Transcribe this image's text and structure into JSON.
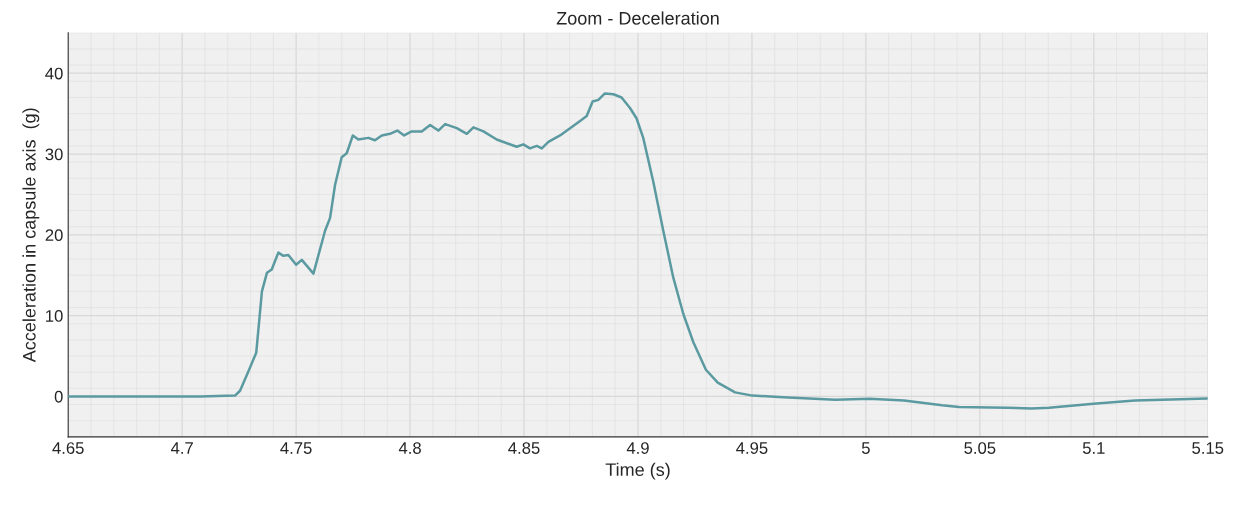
{
  "chart_data": {
    "type": "line",
    "title": "Zoom - Deceleration",
    "xlabel": "Time (s)",
    "ylabel": "Acceleration in capsule axis  (g)",
    "xlim": [
      4.65,
      5.15
    ],
    "xticks": [
      4.65,
      4.7,
      4.75,
      4.8,
      4.85,
      4.9,
      4.95,
      5,
      5.05,
      5.1,
      5.15
    ],
    "ylim": [
      -5,
      45
    ],
    "yticks": [
      0,
      10,
      20,
      30,
      40
    ],
    "grid": true,
    "marker": "none",
    "line_style": "solid",
    "series": [
      {
        "color": "#5b9aa0",
        "x": [
          4.65,
          4.7079,
          4.7232,
          4.7254,
          4.7289,
          4.7325,
          4.735,
          4.7372,
          4.7393,
          4.7422,
          4.7444,
          4.7466,
          4.75,
          4.7525,
          4.7576,
          4.7627,
          4.7649,
          4.7671,
          4.77,
          4.7722,
          4.7749,
          4.7773,
          4.7817,
          4.7846,
          4.7876,
          4.7912,
          4.7944,
          4.7974,
          4.8007,
          4.8051,
          4.8088,
          4.8124,
          4.8154,
          4.8205,
          4.8249,
          4.8278,
          4.8322,
          4.838,
          4.8468,
          4.8497,
          4.8526,
          4.8556,
          4.8578,
          4.8607,
          4.8658,
          4.8702,
          4.8746,
          4.8775,
          4.8801,
          4.8826,
          4.8855,
          4.8892,
          4.8928,
          4.8965,
          4.8994,
          4.9023,
          4.9067,
          4.9111,
          4.9155,
          4.9199,
          4.9243,
          4.9298,
          4.935,
          4.9426,
          4.9502,
          4.9638,
          4.9865,
          5.0016,
          5.0167,
          5.0334,
          5.0409,
          5.0621,
          5.0727,
          5.0803,
          5.0999,
          5.1181,
          5.1498
        ],
        "values": [
          0,
          0,
          0.1,
          0.7,
          3.0,
          5.4,
          13.0,
          15.3,
          15.7,
          17.8,
          17.4,
          17.5,
          16.3,
          16.9,
          15.2,
          20.5,
          22.1,
          26.2,
          29.6,
          30.1,
          32.3,
          31.8,
          32.0,
          31.7,
          32.3,
          32.5,
          32.9,
          32.3,
          32.8,
          32.8,
          33.6,
          32.9,
          33.7,
          33.2,
          32.5,
          33.3,
          32.8,
          31.8,
          30.9,
          31.2,
          30.7,
          31.0,
          30.7,
          31.5,
          32.3,
          33.2,
          34.1,
          34.7,
          36.5,
          36.7,
          37.5,
          37.4,
          37.0,
          35.7,
          34.4,
          32.0,
          26.6,
          20.5,
          14.7,
          10.2,
          6.7,
          3.3,
          1.7,
          0.5,
          0.1,
          -0.1,
          -0.4,
          -0.3,
          -0.5,
          -1.1,
          -1.3,
          -1.4,
          -1.5,
          -1.4,
          -0.9,
          -0.5,
          -0.25
        ]
      }
    ]
  }
}
